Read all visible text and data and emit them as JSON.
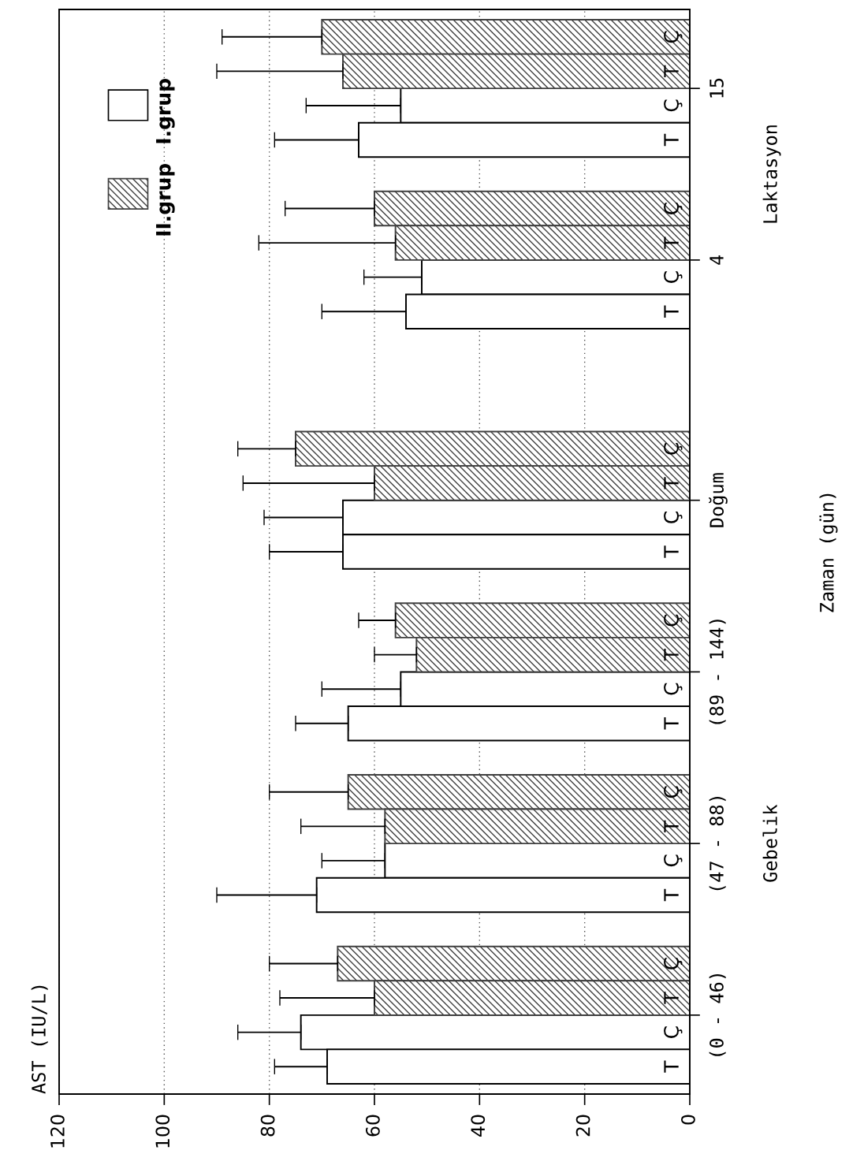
{
  "chart_data": {
    "type": "bar",
    "orientation": "horizontal",
    "categories": [
      "Ç",
      "T",
      "Ç",
      "T",
      null,
      "Ç",
      "T",
      "Ç",
      "T",
      null,
      null,
      null,
      "Ç",
      "T",
      "Ç",
      "T",
      null,
      "Ç",
      "T",
      "Ç",
      "T",
      null,
      "Ç",
      "T",
      "Ç",
      "T",
      null,
      "Ç",
      "T",
      "Ç",
      "T"
    ],
    "series": [
      {
        "name": "I.grup",
        "color": "#ffffff",
        "values": [
          null,
          null,
          55,
          63,
          null,
          null,
          null,
          51,
          54,
          null,
          null,
          null,
          null,
          null,
          66,
          66,
          null,
          null,
          null,
          55,
          65,
          null,
          null,
          null,
          58,
          71,
          null,
          null,
          null,
          74,
          69
        ],
        "errors": [
          null,
          null,
          [
            55,
            73
          ],
          [
            63,
            79
          ],
          null,
          null,
          null,
          [
            51,
            62
          ],
          [
            54,
            70
          ],
          null,
          null,
          null,
          null,
          null,
          [
            66,
            81
          ],
          [
            66,
            80
          ],
          null,
          null,
          null,
          [
            55,
            70
          ],
          [
            65,
            75
          ],
          null,
          null,
          null,
          [
            58,
            70
          ],
          [
            71,
            90
          ],
          null,
          null,
          null,
          [
            74,
            86
          ],
          [
            69,
            79
          ]
        ]
      },
      {
        "name": "II.grup",
        "color": "#404040",
        "values": [
          70,
          66,
          null,
          null,
          null,
          60,
          56,
          null,
          null,
          null,
          null,
          null,
          75,
          60,
          null,
          null,
          null,
          56,
          52,
          null,
          null,
          null,
          65,
          58,
          null,
          null,
          null,
          67,
          60,
          null,
          null
        ],
        "errors": [
          [
            70,
            89
          ],
          [
            66,
            90
          ],
          null,
          null,
          null,
          [
            60,
            77
          ],
          [
            56,
            82
          ],
          null,
          null,
          null,
          null,
          null,
          [
            75,
            86
          ],
          [
            60,
            85
          ],
          null,
          null,
          null,
          [
            56,
            63
          ],
          [
            52,
            60
          ],
          null,
          null,
          null,
          [
            65,
            80
          ],
          [
            58,
            74
          ],
          null,
          null,
          null,
          [
            67,
            80
          ],
          [
            60,
            78
          ],
          null,
          null
        ]
      }
    ],
    "xlim": [
      120,
      0
    ],
    "xticks": [
      0,
      20,
      40,
      60,
      80,
      100,
      120
    ],
    "grid": "x",
    "legend": "top left",
    "annotations": [
      "15",
      "4",
      "Doğum",
      "(89 - 144)",
      "(47 - 88)",
      "(0 - 46)",
      "Laktasyon",
      "Gebelik",
      "Zaman (gün)",
      "AST (IU/L)"
    ]
  }
}
